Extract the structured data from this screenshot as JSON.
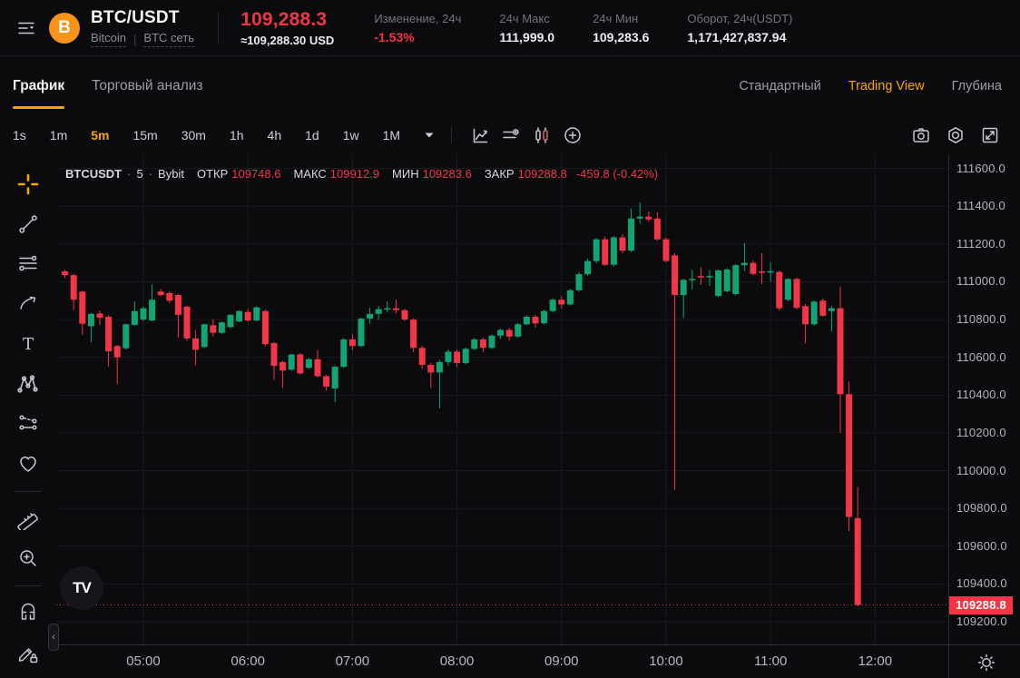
{
  "header": {
    "symbol": "BTC/USDT",
    "coin": "Bitcoin",
    "coin_initial": "B",
    "network": "BTC сеть",
    "last_price": "109,288.3",
    "usd_value": "≈109,288.30 USD",
    "stats": [
      {
        "label": "Изменение, 24ч",
        "value": "-1.53%"
      },
      {
        "label": "24ч Макс",
        "value": "111,999.0"
      },
      {
        "label": "24ч Мин",
        "value": "109,283.6"
      },
      {
        "label": "Оборот, 24ч(USDT)",
        "value": "1,171,427,837.94"
      }
    ]
  },
  "tabs": {
    "left": [
      {
        "label": "График",
        "active": true
      },
      {
        "label": "Торговый анализ",
        "active": false
      }
    ],
    "right": [
      {
        "label": "Стандартный",
        "active": false
      },
      {
        "label": "Trading View",
        "active": true
      },
      {
        "label": "Глубина",
        "active": false
      }
    ]
  },
  "toolbar": {
    "timeframes": [
      "1s",
      "1m",
      "5m",
      "15m",
      "30m",
      "1h",
      "4h",
      "1d",
      "1w",
      "1M"
    ],
    "active_timeframe": "5m"
  },
  "legend": {
    "title": "BTCUSDT",
    "interval": "5",
    "exchange": "Bybit",
    "dot": "·",
    "ohlc": [
      {
        "label": "ОТКР",
        "value": "109748.6"
      },
      {
        "label": "МАКС",
        "value": "109912.9"
      },
      {
        "label": "МИН",
        "value": "109283.6"
      },
      {
        "label": "ЗАКР",
        "value": "109288.8"
      }
    ],
    "change": "-459.8 (-0.42%)"
  },
  "tv_logo_text": "TV",
  "collapse_glyph": "‹",
  "colors": {
    "up": "#12a474",
    "down": "#f23645",
    "grid": "#19191e",
    "accent": "#f7a600",
    "axis_text": "#b2b5bd",
    "background": "#0b0b0e"
  },
  "chart_data": {
    "type": "candlestick",
    "title": "BTCUSDT 5m Bybit candlestick chart",
    "interval_minutes": 5,
    "start_time": "04:15",
    "end_time": "11:50",
    "time_axis_start": "04:10",
    "time_axis_end": "12:42",
    "y_min": 109080,
    "y_max": 111675,
    "y_ticks": [
      "111600.0",
      "111400.0",
      "111200.0",
      "111000.0",
      "110800.0",
      "110600.0",
      "110400.0",
      "110200.0",
      "110000.0",
      "109800.0",
      "109600.0",
      "109400.0",
      "109200.0"
    ],
    "x_labels": [
      "05:00",
      "06:00",
      "07:00",
      "08:00",
      "09:00",
      "10:00",
      "11:00",
      "12:00"
    ],
    "last_price": 109288.8,
    "last_price_label": "109288.8",
    "candles": [
      [
        111055,
        111065,
        111020,
        111035
      ],
      [
        111035,
        111042,
        110850,
        110905
      ],
      [
        110948,
        110952,
        110720,
        110778
      ],
      [
        110765,
        110835,
        110680,
        110830
      ],
      [
        110832,
        110848,
        110772,
        110810
      ],
      [
        110815,
        110822,
        110552,
        110632
      ],
      [
        110660,
        110665,
        110458,
        110600
      ],
      [
        110648,
        110778,
        110642,
        110775
      ],
      [
        110772,
        110895,
        110768,
        110845
      ],
      [
        110800,
        110868,
        110792,
        110860
      ],
      [
        110795,
        110985,
        110790,
        110905
      ],
      [
        110948,
        110962,
        110922,
        110930
      ],
      [
        110940,
        110950,
        110888,
        110900
      ],
      [
        110930,
        110936,
        110705,
        110825
      ],
      [
        110868,
        110874,
        110688,
        110700
      ],
      [
        110700,
        110745,
        110558,
        110640
      ],
      [
        110655,
        110778,
        110650,
        110775
      ],
      [
        110770,
        110802,
        110712,
        110730
      ],
      [
        110730,
        110790,
        110724,
        110785
      ],
      [
        110760,
        110828,
        110754,
        110825
      ],
      [
        110790,
        110850,
        110786,
        110845
      ],
      [
        110840,
        110856,
        110788,
        110795
      ],
      [
        110795,
        110870,
        110790,
        110865
      ],
      [
        110845,
        110852,
        110658,
        110670
      ],
      [
        110675,
        110682,
        110482,
        110555
      ],
      [
        110575,
        110582,
        110438,
        110530
      ],
      [
        110535,
        110618,
        110528,
        110615
      ],
      [
        110615,
        110622,
        110508,
        110515
      ],
      [
        110545,
        110596,
        110538,
        110590
      ],
      [
        110590,
        110640,
        110494,
        110500
      ],
      [
        110500,
        110508,
        110424,
        110445
      ],
      [
        110435,
        110556,
        110363,
        110550
      ],
      [
        110550,
        110702,
        110544,
        110695
      ],
      [
        110695,
        110722,
        110638,
        110660
      ],
      [
        110660,
        110812,
        110654,
        110805
      ],
      [
        110805,
        110862,
        110778,
        110830
      ],
      [
        110830,
        110872,
        110800,
        110855
      ],
      [
        110855,
        110896,
        110838,
        110860
      ],
      [
        110860,
        110906,
        110832,
        110850
      ],
      [
        110850,
        110856,
        110792,
        110800
      ],
      [
        110800,
        110806,
        110628,
        110650
      ],
      [
        110650,
        110662,
        110538,
        110560
      ],
      [
        110560,
        110572,
        110438,
        110520
      ],
      [
        110520,
        110586,
        110330,
        110575
      ],
      [
        110575,
        110642,
        110558,
        110630
      ],
      [
        110630,
        110642,
        110548,
        110570
      ],
      [
        110570,
        110652,
        110562,
        110645
      ],
      [
        110645,
        110702,
        110638,
        110695
      ],
      [
        110695,
        110704,
        110628,
        110650
      ],
      [
        110650,
        110722,
        110644,
        110715
      ],
      [
        110715,
        110752,
        110698,
        110745
      ],
      [
        110745,
        110756,
        110688,
        110710
      ],
      [
        110710,
        110782,
        110704,
        110775
      ],
      [
        110775,
        110822,
        110768,
        110815
      ],
      [
        110815,
        110826,
        110758,
        110780
      ],
      [
        110780,
        110852,
        110774,
        110845
      ],
      [
        110845,
        110912,
        110838,
        110905
      ],
      [
        110905,
        110922,
        110858,
        110880
      ],
      [
        110880,
        110962,
        110874,
        110955
      ],
      [
        110955,
        111052,
        110948,
        111040
      ],
      [
        111040,
        111122,
        111032,
        111110
      ],
      [
        111110,
        111232,
        111098,
        111225
      ],
      [
        111225,
        111238,
        111084,
        111090
      ],
      [
        111090,
        111242,
        111082,
        111235
      ],
      [
        111235,
        111252,
        111152,
        111165
      ],
      [
        111165,
        111388,
        111158,
        111335
      ],
      [
        111335,
        111420,
        111308,
        111345
      ],
      [
        111345,
        111372,
        111318,
        111330
      ],
      [
        111335,
        111368,
        111218,
        111225
      ],
      [
        111225,
        111236,
        111102,
        111110
      ],
      [
        111140,
        111152,
        109897,
        110930
      ],
      [
        110930,
        111016,
        110808,
        111010
      ],
      [
        111010,
        111062,
        110958,
        111015
      ],
      [
        111030,
        111076,
        110984,
        111025
      ],
      [
        111025,
        111062,
        110978,
        111030
      ],
      [
        110925,
        111066,
        110918,
        111060
      ],
      [
        110950,
        111072,
        110944,
        111065
      ],
      [
        110935,
        111094,
        110928,
        111088
      ],
      [
        111088,
        111206,
        111058,
        111100
      ],
      [
        111100,
        111112,
        111034,
        111042
      ],
      [
        111055,
        111152,
        110988,
        111052
      ],
      [
        111052,
        111102,
        111002,
        111056
      ],
      [
        111052,
        111060,
        110848,
        110860
      ],
      [
        110905,
        111020,
        110898,
        111015
      ],
      [
        111015,
        111022,
        110854,
        110862
      ],
      [
        110871,
        110882,
        110674,
        110775
      ],
      [
        110775,
        110902,
        110768,
        110895
      ],
      [
        110900,
        110912,
        110814,
        110820
      ],
      [
        110845,
        110872,
        110737,
        110860
      ],
      [
        110860,
        110975,
        110200,
        110405
      ],
      [
        110405,
        110472,
        109680,
        109755
      ],
      [
        109748.6,
        109912.9,
        109283.6,
        109288.8
      ]
    ]
  }
}
